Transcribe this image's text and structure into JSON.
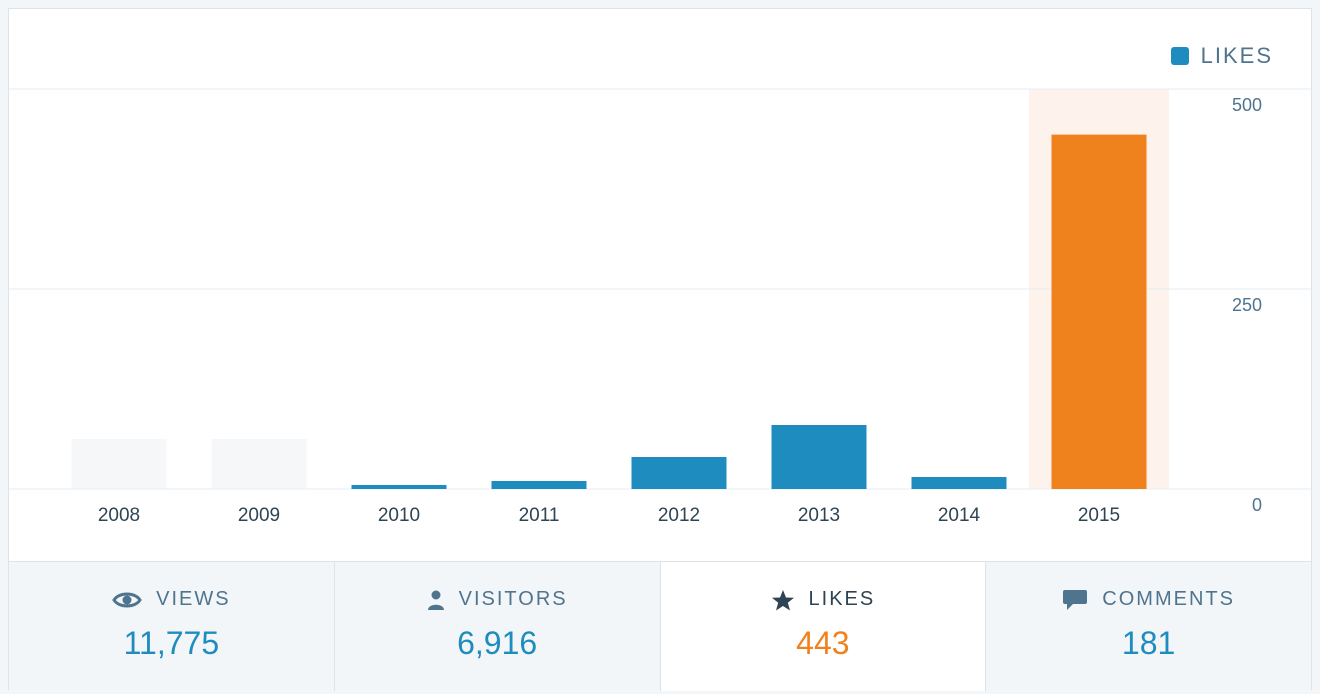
{
  "colors": {
    "bar": "#1e8cbe",
    "highlight_bar": "#f0821e",
    "highlight_band": "#fef3ec",
    "grid": "#e6ecf0",
    "axis_text": "#4f748e",
    "empty_bar": "#eef2f5"
  },
  "legend": {
    "label": "LIKES",
    "icon": "square-swatch"
  },
  "chart_data": {
    "type": "bar",
    "categories": [
      "2008",
      "2009",
      "2010",
      "2011",
      "2012",
      "2013",
      "2014",
      "2015"
    ],
    "values": [
      0,
      0,
      5,
      10,
      40,
      80,
      15,
      443
    ],
    "highlighted_category": "2015",
    "yticks": [
      "0",
      "250",
      "500"
    ],
    "ylim": [
      0,
      500
    ],
    "grid": true,
    "legend_position": "top-right"
  },
  "tabs": [
    {
      "key": "views",
      "icon": "eye-icon",
      "label": "VIEWS",
      "value": "11,775"
    },
    {
      "key": "visitors",
      "icon": "person-icon",
      "label": "VISITORS",
      "value": "6,916"
    },
    {
      "key": "likes",
      "icon": "star-icon",
      "label": "LIKES",
      "value": "443",
      "active": true
    },
    {
      "key": "comments",
      "icon": "speech-bubble-icon",
      "label": "COMMENTS",
      "value": "181"
    }
  ]
}
